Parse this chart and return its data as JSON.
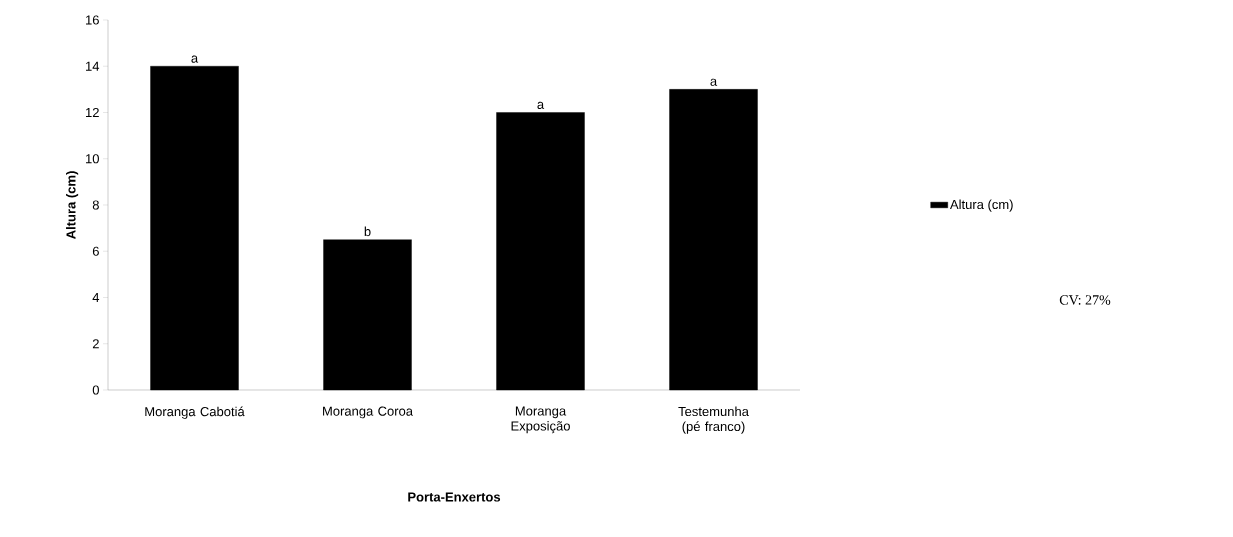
{
  "chart_data": {
    "type": "bar",
    "xlabel": "Porta-Enxertos",
    "ylabel": "Altura (cm)",
    "categories": [
      "Moranga Cabotiá",
      "Moranga Coroa",
      "Moranga Exposição",
      "Testemunha (pé franco)"
    ],
    "series": [
      {
        "name": "Altura (cm)",
        "color": "#000000",
        "values": [
          14,
          6.5,
          12,
          13
        ]
      }
    ],
    "ylim": [
      0,
      16
    ],
    "yticks": [
      0,
      2,
      4,
      6,
      8,
      10,
      12,
      14,
      16
    ],
    "grid": false,
    "legend": "right",
    "annotations": [
      {
        "text": "a",
        "x": "Moranga Cabotiá",
        "y": 14
      },
      {
        "text": "b",
        "x": "Moranga Coroa",
        "y": 6.5
      },
      {
        "text": "a",
        "x": "Moranga Exposição",
        "y": 12
      },
      {
        "text": "a",
        "x": "Testemunha (pé franco)",
        "y": 13
      },
      "CV: 27%"
    ]
  }
}
